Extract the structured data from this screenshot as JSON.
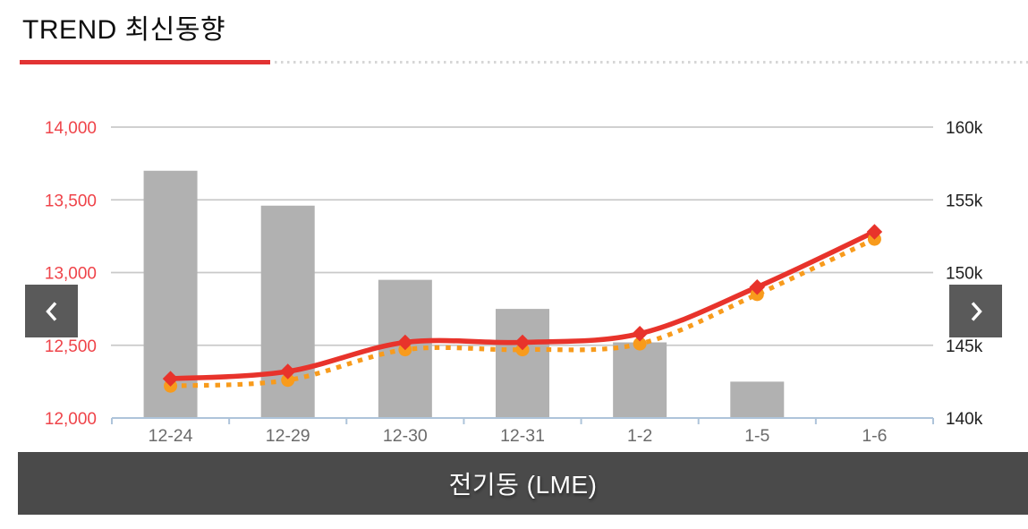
{
  "header": {
    "title": "TREND 최신동향"
  },
  "carousel": {
    "caption": "전기동 (LME)",
    "prev_icon": "chevron-left",
    "next_icon": "chevron-right"
  },
  "colors": {
    "title_underline_red": "#e23333",
    "underline_dots": "#d6d6d6",
    "line_red": "#e8332b",
    "line_orange": "#f89b1c",
    "bar_gray": "#b1b1b1",
    "left_axis_label_red": "#ef4349",
    "right_axis_label": "#1f1f1f",
    "x_label_gray": "#6b6b6b",
    "gridline": "#c9c9c9",
    "x_axis_line": "#aec4da",
    "nav_button_bg": "#5a5a5a",
    "banner_bg": "#4a4a4a"
  },
  "chart_data": {
    "type": "bar",
    "subtype": "combo bar+line, dual axis",
    "title": "전기동 (LME)",
    "xlabel": "",
    "ylabel": "",
    "grid": true,
    "legend": false,
    "categories": [
      "12-24",
      "12-29",
      "12-30",
      "12-31",
      "1-2",
      "1-5",
      "1-6"
    ],
    "series": [
      {
        "id": "bars",
        "type": "bar",
        "axis": "right",
        "values": [
          157000,
          154600,
          149500,
          147500,
          145200,
          142500,
          null
        ]
      },
      {
        "id": "line_solid_red",
        "type": "line",
        "line_style": "solid",
        "marker": "diamond",
        "axis": "left",
        "values": [
          12270,
          12320,
          12520,
          12520,
          12580,
          12900,
          13280
        ]
      },
      {
        "id": "line_dotted_orange",
        "type": "line",
        "line_style": "dotted",
        "marker": "circle",
        "axis": "left",
        "values": [
          12220,
          12260,
          12470,
          12470,
          12510,
          12850,
          13230
        ]
      }
    ],
    "left_axis": {
      "min": 12000,
      "max": 14000,
      "step": 500,
      "tick_labels": [
        "14,000",
        "13,500",
        "13,000",
        "12,500",
        "12,000"
      ]
    },
    "right_axis": {
      "min": 140000,
      "max": 160000,
      "step": 5000,
      "tick_labels": [
        "160k",
        "155k",
        "150k",
        "145k",
        "140k"
      ]
    }
  }
}
